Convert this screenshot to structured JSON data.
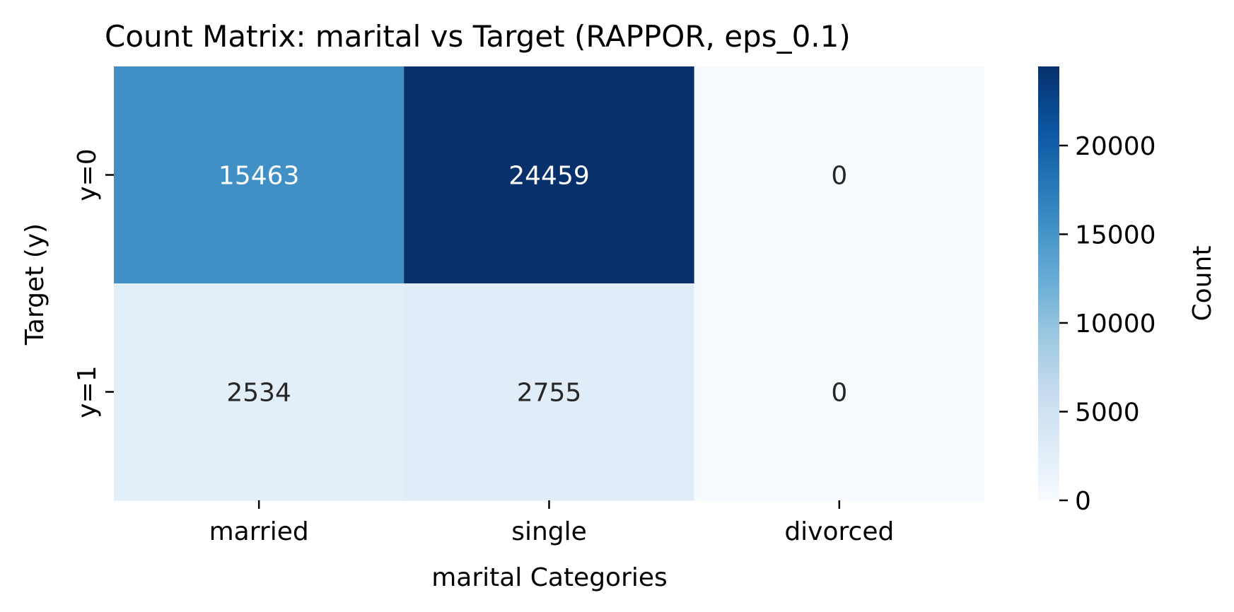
{
  "chart_data": {
    "type": "heatmap",
    "title": "Count Matrix: marital vs Target (RAPPOR, eps_0.1)",
    "xlabel": "marital Categories",
    "ylabel": "Target (y)",
    "x_categories": [
      "married",
      "single",
      "divorced"
    ],
    "y_categories": [
      "y=0",
      "y=1"
    ],
    "values": [
      [
        15463,
        24459,
        0
      ],
      [
        2534,
        2755,
        0
      ]
    ],
    "colormap": "Blues",
    "colorbar": {
      "label": "Count",
      "range": [
        0,
        24459
      ],
      "ticks": [
        0,
        5000,
        10000,
        15000,
        20000
      ]
    },
    "grid": false
  }
}
